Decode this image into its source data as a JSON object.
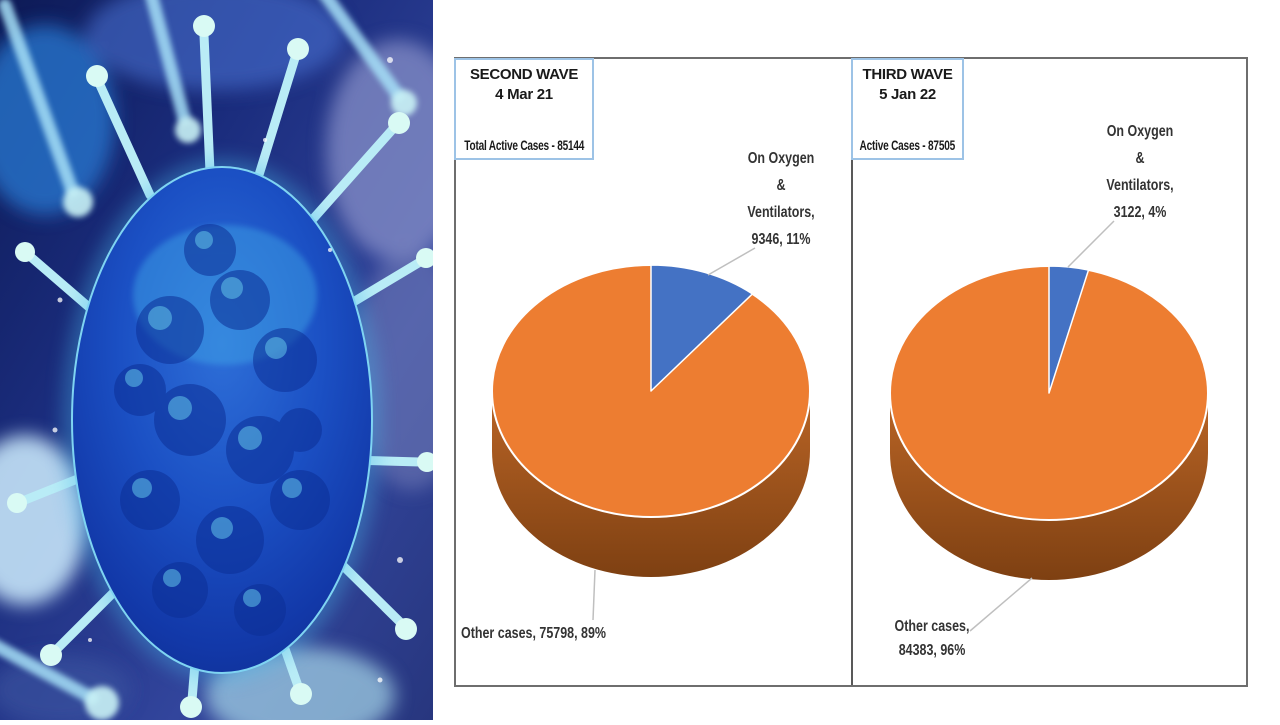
{
  "virus_image": {
    "description": "3D illustration of a blue virus particle with protein spikes on a glowing blue background"
  },
  "colors": {
    "oxygen_slice": "#4472C4",
    "other_slice": "#ED7D31",
    "pie_side_top": "#BA6526",
    "pie_side_bottom": "#7E4012",
    "pie_rim": "#ffffff",
    "leader_line": "#BFBFBF",
    "panel_border": "#6e6e6e",
    "divider": "#595959",
    "header_box_border": "#9DC3E6",
    "label_text": "#333333"
  },
  "chart_data": [
    {
      "type": "pie",
      "style": "3d",
      "wave": "SECOND WAVE",
      "date": "4 Mar 21",
      "total_label": "Total Active Cases - 85144",
      "total_active_cases": 85144,
      "slices": [
        {
          "name": "On Oxygen & Ventilators",
          "value": 9346,
          "pct": 11,
          "color": "#4472C4"
        },
        {
          "name": "Other cases",
          "value": 75798,
          "pct": 89,
          "color": "#ED7D31"
        }
      ],
      "oxygen_label_lines": [
        "On Oxygen",
        "&",
        "Ventilators,",
        "9346, 11%"
      ],
      "other_label_lines": [
        "Other cases, 75798, 89%"
      ]
    },
    {
      "type": "pie",
      "style": "3d",
      "wave": "THIRD WAVE",
      "date": "5 Jan 22",
      "total_label": "Active Cases - 87505",
      "total_active_cases": 87505,
      "slices": [
        {
          "name": "On Oxygen & Ventilators",
          "value": 3122,
          "pct": 4,
          "color": "#4472C4"
        },
        {
          "name": "Other cases",
          "value": 84383,
          "pct": 96,
          "color": "#ED7D31"
        }
      ],
      "oxygen_label_lines": [
        "On Oxygen",
        "&",
        "Ventilators,",
        "3122, 4%"
      ],
      "other_label_lines": [
        "Other cases,",
        "84383, 96%"
      ]
    }
  ]
}
